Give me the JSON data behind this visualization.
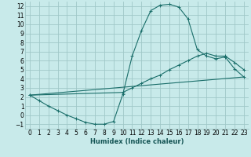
{
  "xlabel": "Humidex (Indice chaleur)",
  "bg_color": "#c8eaea",
  "grid_color": "#a0c8c8",
  "line_color": "#1a6e6a",
  "xlim": [
    -0.5,
    23.5
  ],
  "ylim": [
    -1.5,
    12.5
  ],
  "xticks": [
    0,
    1,
    2,
    3,
    4,
    5,
    6,
    7,
    8,
    9,
    10,
    11,
    12,
    13,
    14,
    15,
    16,
    17,
    18,
    19,
    20,
    21,
    22,
    23
  ],
  "yticks": [
    -1,
    0,
    1,
    2,
    3,
    4,
    5,
    6,
    7,
    8,
    9,
    10,
    11,
    12
  ],
  "curve1_x": [
    0,
    1,
    2,
    3,
    4,
    5,
    6,
    7,
    8,
    9,
    10,
    11,
    12,
    13,
    14,
    15,
    16,
    17,
    18,
    19,
    20,
    21,
    22,
    23
  ],
  "curve1_y": [
    2.2,
    1.6,
    1.0,
    0.5,
    0.0,
    -0.4,
    -0.8,
    -1.0,
    -1.0,
    -0.7,
    2.3,
    6.5,
    9.3,
    11.5,
    12.1,
    12.2,
    11.9,
    10.6,
    7.2,
    6.5,
    6.2,
    6.4,
    5.1,
    4.2
  ],
  "curve2_x": [
    0,
    10,
    11,
    12,
    13,
    14,
    15,
    16,
    17,
    18,
    19,
    20,
    21,
    22,
    23
  ],
  "curve2_y": [
    2.2,
    2.5,
    3.0,
    3.5,
    4.0,
    4.4,
    5.0,
    5.5,
    6.0,
    6.5,
    6.8,
    6.5,
    6.5,
    5.8,
    5.0
  ],
  "curve3_x": [
    0,
    23
  ],
  "curve3_y": [
    2.2,
    4.2
  ],
  "xlabel_fontsize": 6.0,
  "tick_fontsize": 5.5
}
